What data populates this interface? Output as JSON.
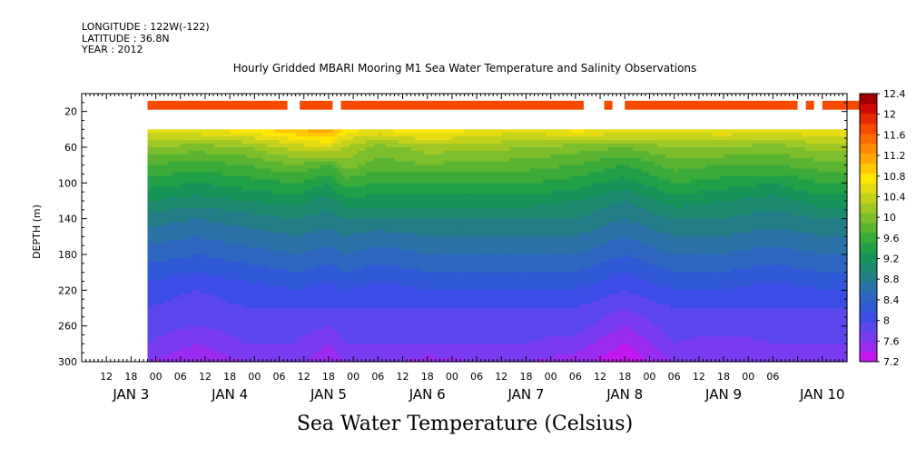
{
  "header": {
    "longitude": "LONGITUDE : 122W(-122)",
    "latitude": "LATITUDE : 36.8N",
    "year": "YEAR : 2012"
  },
  "chart_data": {
    "type": "heatmap",
    "title": "Hourly Gridded MBARI Mooring M1 Sea Water Temperature and Salinity Observations",
    "xlabel": "Sea Water Temperature (Celsius)",
    "ylabel": "DEPTH (m)",
    "x_range_hours": [
      0,
      186
    ],
    "y_range_depth_m": [
      0,
      300
    ],
    "y_ticks": [
      20,
      60,
      100,
      140,
      180,
      220,
      260,
      300
    ],
    "x_hour_ticks": [
      "12",
      "18",
      "00",
      "06",
      "12",
      "18",
      "00",
      "06",
      "12",
      "18",
      "00",
      "06",
      "12",
      "18",
      "00",
      "06",
      "12",
      "18",
      "00",
      "06",
      "12",
      "18",
      "00",
      "06",
      "12",
      "18",
      "00",
      "06"
    ],
    "x_day_labels": [
      {
        "label": "JAN  3",
        "hour": 12
      },
      {
        "label": "JAN  4",
        "hour": 36
      },
      {
        "label": "JAN  5",
        "hour": 60
      },
      {
        "label": "JAN  6",
        "hour": 84
      },
      {
        "label": "JAN  7",
        "hour": 108
      },
      {
        "label": "JAN  8",
        "hour": 132
      },
      {
        "label": "JAN  9",
        "hour": 156
      },
      {
        "label": "JAN 10",
        "hour": 180
      }
    ],
    "colorbar": {
      "labels": [
        "12.4",
        "12",
        "11.6",
        "11.2",
        "10.8",
        "10.4",
        "10",
        "9.6",
        "9.2",
        "8.8",
        "8.4",
        "8",
        "7.6",
        "7.2"
      ],
      "levels": [
        7.2,
        7.4,
        7.6,
        7.8,
        8.0,
        8.2,
        8.4,
        8.6,
        8.8,
        9.0,
        9.2,
        9.4,
        9.6,
        9.8,
        10.0,
        10.2,
        10.4,
        10.6,
        10.8,
        11.0,
        11.2,
        11.4,
        11.6,
        11.8,
        12.0,
        12.2,
        12.4
      ],
      "colors": [
        "#c418f0",
        "#9c2cf0",
        "#7a3cf0",
        "#5c46ee",
        "#3c4ce6",
        "#3158d6",
        "#2e66c0",
        "#2a72a8",
        "#247e88",
        "#1e8a70",
        "#199458",
        "#22a048",
        "#3aaa38",
        "#5ab432",
        "#7cbe2c",
        "#a0c824",
        "#c4d21c",
        "#e6dc14",
        "#ffe600",
        "#ffc800",
        "#ffa800",
        "#ff8a00",
        "#ff6a00",
        "#f54a00",
        "#e82a00",
        "#d00a00",
        "#a00000"
      ]
    },
    "start_hour": 16,
    "surface_sensor_depth_m": [
      8,
      18
    ],
    "surface_sensor_temp_c": 11.8,
    "surface_sensor_gaps_hours": [
      [
        50,
        53
      ],
      [
        61,
        63
      ],
      [
        122,
        127
      ],
      [
        129,
        132
      ],
      [
        174,
        176
      ],
      [
        178,
        180
      ],
      [
        193,
        198
      ]
    ],
    "gridded_top_depth_m": 40,
    "profiles": {
      "depth_m": [
        40,
        60,
        80,
        100,
        120,
        140,
        160,
        180,
        200,
        220,
        240,
        260,
        280,
        300
      ],
      "hour": [
        16,
        28,
        40,
        52,
        60,
        64,
        72,
        84,
        96,
        108,
        120,
        132,
        144,
        156,
        168,
        180,
        186
      ],
      "temperature_c": [
        [
          10.7,
          10.2,
          9.8,
          9.5,
          9.2,
          8.9,
          8.7,
          8.5,
          8.3,
          8.1,
          8.0,
          7.9,
          7.8,
          7.6
        ],
        [
          10.8,
          10.1,
          9.7,
          9.4,
          9.1,
          8.8,
          8.6,
          8.4,
          8.2,
          8.0,
          7.9,
          7.8,
          7.6,
          7.4
        ],
        [
          10.9,
          10.2,
          9.8,
          9.5,
          9.2,
          8.9,
          8.7,
          8.5,
          8.3,
          8.1,
          8.0,
          7.9,
          7.8,
          7.6
        ],
        [
          11.2,
          10.5,
          10.0,
          9.6,
          9.3,
          9.0,
          8.8,
          8.6,
          8.4,
          8.2,
          8.0,
          7.9,
          7.8,
          7.7
        ],
        [
          11.4,
          10.6,
          9.8,
          9.4,
          9.1,
          8.9,
          8.7,
          8.5,
          8.3,
          8.1,
          8.0,
          7.8,
          7.6,
          7.4
        ],
        [
          10.9,
          10.4,
          10.1,
          9.7,
          9.3,
          9.0,
          8.8,
          8.6,
          8.4,
          8.2,
          8.0,
          7.9,
          7.8,
          7.6
        ],
        [
          10.8,
          10.1,
          9.9,
          9.6,
          9.3,
          9.0,
          8.7,
          8.5,
          8.3,
          8.1,
          8.0,
          7.9,
          7.8,
          7.7
        ],
        [
          11.0,
          10.3,
          10.0,
          9.6,
          9.3,
          9.0,
          8.8,
          8.6,
          8.4,
          8.2,
          8.0,
          7.9,
          7.8,
          7.5
        ],
        [
          10.8,
          10.3,
          9.9,
          9.6,
          9.3,
          9.0,
          8.8,
          8.6,
          8.4,
          8.2,
          8.0,
          7.9,
          7.8,
          7.6
        ],
        [
          10.7,
          10.2,
          9.9,
          9.6,
          9.3,
          9.0,
          8.8,
          8.6,
          8.4,
          8.2,
          8.0,
          7.9,
          7.8,
          7.6
        ],
        [
          10.9,
          10.1,
          9.8,
          9.5,
          9.2,
          9.0,
          8.8,
          8.6,
          8.4,
          8.2,
          8.0,
          7.9,
          7.7,
          7.5
        ],
        [
          10.8,
          10.0,
          9.6,
          9.3,
          9.0,
          8.8,
          8.6,
          8.4,
          8.2,
          8.0,
          7.8,
          7.6,
          7.4,
          7.2
        ],
        [
          10.7,
          10.2,
          9.9,
          9.6,
          9.3,
          9.0,
          8.8,
          8.6,
          8.4,
          8.2,
          8.0,
          7.9,
          7.8,
          7.6
        ],
        [
          10.8,
          10.2,
          9.8,
          9.5,
          9.2,
          9.0,
          8.8,
          8.6,
          8.4,
          8.2,
          8.0,
          7.9,
          7.7,
          7.6
        ],
        [
          10.7,
          10.1,
          9.8,
          9.4,
          9.1,
          8.9,
          8.7,
          8.5,
          8.3,
          8.1,
          8.0,
          7.9,
          7.8,
          7.6
        ],
        [
          10.8,
          10.3,
          9.9,
          9.6,
          9.3,
          9.0,
          8.8,
          8.6,
          8.4,
          8.2,
          8.0,
          7.9,
          7.8,
          7.6
        ],
        [
          10.8,
          10.3,
          9.9,
          9.6,
          9.3,
          9.0,
          8.8,
          8.6,
          8.4,
          8.2,
          8.0,
          7.9,
          7.8,
          7.6
        ]
      ]
    }
  }
}
